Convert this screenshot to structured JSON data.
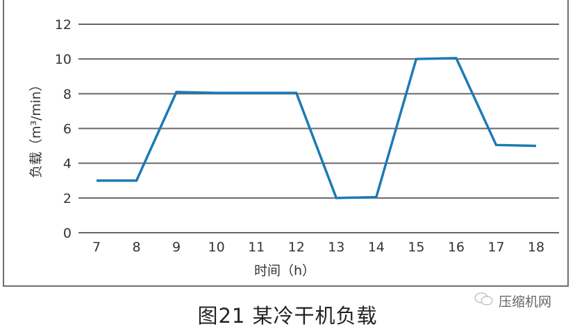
{
  "chart_data": {
    "type": "line",
    "title": "图21 某冷干机负载",
    "xlabel": "时间（h）",
    "ylabel": "负载（m³/min）",
    "x": [
      7,
      8,
      9,
      10,
      11,
      12,
      13,
      14,
      15,
      16,
      17,
      18
    ],
    "series": [
      {
        "values": [
          3,
          3,
          8.1,
          8.05,
          8.05,
          8.05,
          2,
          2.05,
          10,
          10.05,
          5.05,
          5
        ]
      }
    ],
    "xticks": [
      "7",
      "8",
      "9",
      "10",
      "11",
      "12",
      "13",
      "14",
      "15",
      "16",
      "17",
      "18"
    ],
    "yticks": [
      "0",
      "2",
      "4",
      "6",
      "8",
      "10",
      "12"
    ],
    "ylim": [
      0,
      12
    ],
    "grid": true,
    "line_color": "#1a7ab5",
    "grid_color": "#666666"
  },
  "watermark": "压缩机网"
}
